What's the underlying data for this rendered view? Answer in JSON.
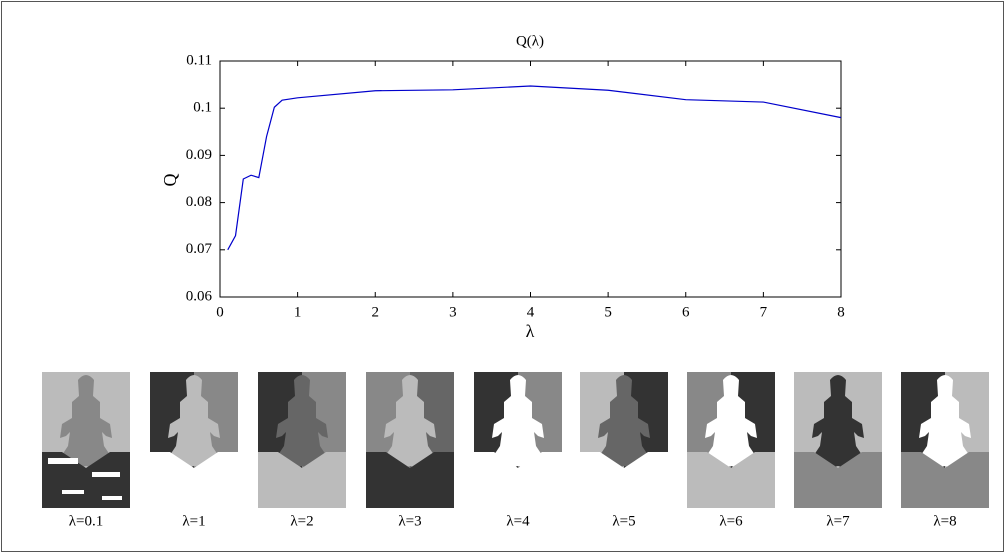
{
  "chart_data": {
    "type": "line",
    "title": "Q(λ)",
    "x_label": "λ",
    "y_label": "Q",
    "x": [
      0.1,
      0.2,
      0.3,
      0.4,
      0.5,
      0.6,
      0.7,
      0.8,
      1,
      2,
      3,
      4,
      5,
      6,
      7,
      8
    ],
    "series": [
      {
        "name": "Q",
        "color": "#0000cc",
        "values": [
          0.07,
          0.073,
          0.085,
          0.0858,
          0.0853,
          0.094,
          0.1002,
          0.1017,
          0.1022,
          0.1037,
          0.1039,
          0.1047,
          0.1038,
          0.1018,
          0.1013,
          0.098
        ]
      }
    ],
    "xlim": [
      0,
      8
    ],
    "xticks": [
      0,
      1,
      2,
      3,
      4,
      5,
      6,
      7,
      8
    ],
    "ylim": [
      0.06,
      0.11
    ],
    "yticks": [
      0.06,
      0.07,
      0.08,
      0.09,
      0.1,
      0.11
    ],
    "grid": false
  },
  "thumbnails": {
    "labels": [
      "λ=0.1",
      "λ=1",
      "λ=2",
      "λ=3",
      "λ=4",
      "λ=5",
      "λ=6",
      "λ=7",
      "λ=8"
    ]
  }
}
